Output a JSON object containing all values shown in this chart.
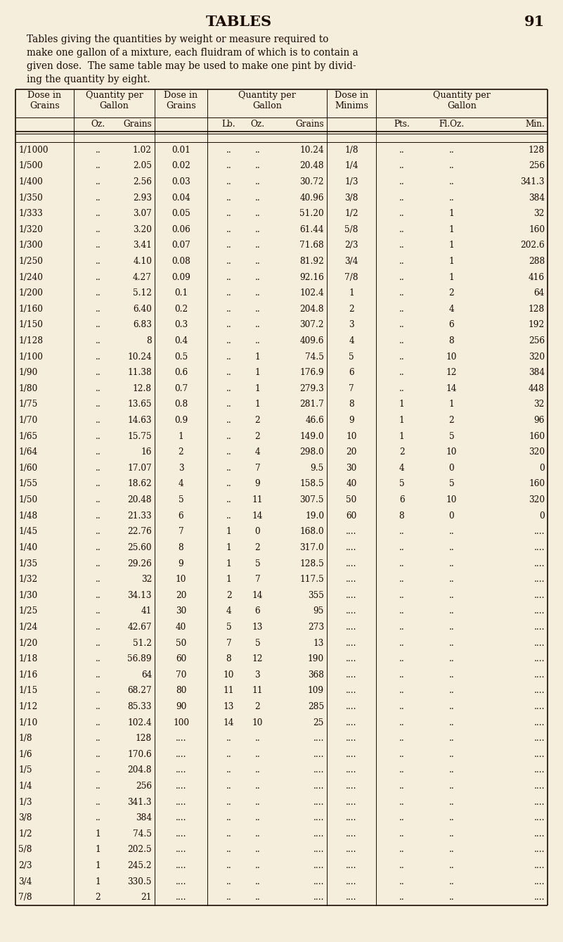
{
  "bg_color": "#f5eedc",
  "title": "TABLES",
  "page_num": "91",
  "intro_text": [
    "Tables giving the quantities by weight or measure required to",
    "make one gallon of a mixture, each fluidram of which is to contain a",
    "given dose.  The same table may be used to make one pint by divid-",
    "ing the quantity by eight."
  ],
  "col1_data": [
    "1/1000",
    "1/500",
    "1/400",
    "1/350",
    "1/333",
    "1/320",
    "1/300",
    "1/250",
    "1/240",
    "1/200",
    "1/160",
    "1/150",
    "1/128",
    "1/100",
    "1/90",
    "1/80",
    "1/75",
    "1/70",
    "1/65",
    "1/64",
    "1/60",
    "1/55",
    "1/50",
    "1/48",
    "1/45",
    "1/40",
    "1/35",
    "1/32",
    "1/30",
    "1/25",
    "1/24",
    "1/20",
    "1/18",
    "1/16",
    "1/15",
    "1/12",
    "1/10",
    "1/8",
    "1/6",
    "1/5",
    "1/4",
    "1/3",
    "3/8",
    "1/2",
    "5/8",
    "2/3",
    "3/4",
    "7/8"
  ],
  "col2a_data": [
    "..",
    "..",
    "..",
    "..",
    "..",
    "..",
    "..",
    "..",
    "..",
    "..",
    "..",
    "..",
    "..",
    "..",
    "..",
    "..",
    "..",
    "..",
    "..",
    "..",
    "..",
    "..",
    "..",
    "..",
    "..",
    "..",
    "..",
    "..",
    "..",
    "..",
    "..",
    "..",
    "..",
    "..",
    "..",
    "..",
    "..",
    "..",
    "..",
    "..",
    "..",
    "..",
    "..",
    "1",
    "1",
    "1",
    "1",
    "2"
  ],
  "col2b_data": [
    "1.02",
    "2.05",
    "2.56",
    "2.93",
    "3.07",
    "3.20",
    "3.41",
    "4.10",
    "4.27",
    "5.12",
    "6.40",
    "6.83",
    "8",
    "10.24",
    "11.38",
    "12.8",
    "13.65",
    "14.63",
    "15.75",
    "16",
    "17.07",
    "18.62",
    "20.48",
    "21.33",
    "22.76",
    "25.60",
    "29.26",
    "32",
    "34.13",
    "41",
    "42.67",
    "51.2",
    "56.89",
    "64",
    "68.27",
    "85.33",
    "102.4",
    "128",
    "170.6",
    "204.8",
    "256",
    "341.3",
    "384",
    "74.5",
    "202.5",
    "245.2",
    "330.5",
    "21"
  ],
  "col3_data": [
    "0.01",
    "0.02",
    "0.03",
    "0.04",
    "0.05",
    "0.06",
    "0.07",
    "0.08",
    "0.09",
    "0.1",
    "0.2",
    "0.3",
    "0.4",
    "0.5",
    "0.6",
    "0.7",
    "0.8",
    "0.9",
    "1",
    "2",
    "3",
    "4",
    "5",
    "6",
    "7",
    "8",
    "9",
    "10",
    "20",
    "30",
    "40",
    "50",
    "60",
    "70",
    "80",
    "90",
    "100",
    "....",
    "....",
    "....",
    "....",
    "....",
    "....",
    "....",
    "....",
    "....",
    "....",
    "...."
  ],
  "col4a_data": [
    "..",
    "..",
    "..",
    "..",
    "..",
    "..",
    "..",
    "..",
    "..",
    "..",
    "..",
    "..",
    "..",
    "..",
    "..",
    "..",
    "..",
    "..",
    "..",
    "..",
    "..",
    "..",
    "..",
    "..",
    "1",
    "1",
    "1",
    "1",
    "2",
    "4",
    "5",
    "7",
    "8",
    "10",
    "11",
    "13",
    "14",
    "..",
    "..",
    "..",
    "..",
    "..",
    "..",
    "..",
    "..",
    "..",
    "..",
    ".."
  ],
  "col4b_data": [
    "..",
    "..",
    "..",
    "..",
    "..",
    "..",
    "..",
    "..",
    "..",
    "..",
    "..",
    "..",
    "..",
    "1",
    "1",
    "1",
    "1",
    "2",
    "2",
    "4",
    "7",
    "9",
    "11",
    "14",
    "0",
    "2",
    "5",
    "7",
    "14",
    "6",
    "13",
    "5",
    "12",
    "3",
    "11",
    "2",
    "10",
    "..",
    "..",
    "..",
    "..",
    "..",
    "..",
    "..",
    "..",
    "..",
    "..",
    ".."
  ],
  "col4c_data": [
    "10.24",
    "20.48",
    "30.72",
    "40.96",
    "51.20",
    "61.44",
    "71.68",
    "81.92",
    "92.16",
    "102.4",
    "204.8",
    "307.2",
    "409.6",
    "74.5",
    "176.9",
    "279.3",
    "281.7",
    "46.6",
    "149.0",
    "298.0",
    "9.5",
    "158.5",
    "307.5",
    "19.0",
    "168.0",
    "317.0",
    "128.5",
    "117.5",
    "355",
    "95",
    "273",
    "13",
    "190",
    "368",
    "109",
    "285",
    "25",
    "....",
    "....",
    "....",
    "....",
    "....",
    "....",
    "....",
    "....",
    "....",
    "....",
    "...."
  ],
  "col5_data": [
    "1/8",
    "1/4",
    "1/3",
    "3/8",
    "1/2",
    "5/8",
    "2/3",
    "3/4",
    "7/8",
    "1",
    "2",
    "3",
    "4",
    "5",
    "6",
    "7",
    "8",
    "9",
    "10",
    "20",
    "30",
    "40",
    "50",
    "60",
    "....",
    "....",
    "....",
    "....",
    "....",
    "....",
    "....",
    "....",
    "....",
    "....",
    "....",
    "....",
    "....",
    "....",
    "....",
    "....",
    "....",
    "....",
    "....",
    "....",
    "....",
    "....",
    "....",
    "...."
  ],
  "col6a_data": [
    "..",
    "..",
    "..",
    "..",
    "..",
    "..",
    "..",
    "..",
    "..",
    "..",
    "..",
    "..",
    "..",
    "..",
    "..",
    "..",
    "1",
    "1",
    "1",
    "2",
    "4",
    "5",
    "6",
    "8",
    "..",
    "..",
    "..",
    "..",
    "..",
    "..",
    "..",
    "..",
    "..",
    "..",
    "..",
    "..",
    "..",
    "..",
    "..",
    "..",
    "..",
    "..",
    "..",
    "..",
    "..",
    "..",
    "..",
    ".."
  ],
  "col6b_data": [
    "..",
    "..",
    "..",
    "..",
    "1",
    "1",
    "1",
    "1",
    "1",
    "2",
    "4",
    "6",
    "8",
    "10",
    "12",
    "14",
    "1",
    "2",
    "5",
    "10",
    "0",
    "5",
    "10",
    "0",
    "..",
    "..",
    "..",
    "..",
    "..",
    "..",
    "..",
    "..",
    "..",
    "..",
    "..",
    "..",
    "..",
    "..",
    "..",
    "..",
    "..",
    "..",
    "..",
    "..",
    "..",
    "..",
    "..",
    ".."
  ],
  "col6c_data": [
    "128",
    "256",
    "341.3",
    "384",
    "32",
    "160",
    "202.6",
    "288",
    "416",
    "64",
    "128",
    "192",
    "256",
    "320",
    "384",
    "448",
    "32",
    "96",
    "160",
    "320",
    "0",
    "160",
    "320",
    "0",
    "....",
    "....",
    "....",
    "....",
    "....",
    "....",
    "....",
    "....",
    "....",
    "....",
    "....",
    "....",
    "....",
    "....",
    "....",
    "....",
    "....",
    "....",
    "....",
    "....",
    "....",
    "....",
    "....",
    "...."
  ]
}
